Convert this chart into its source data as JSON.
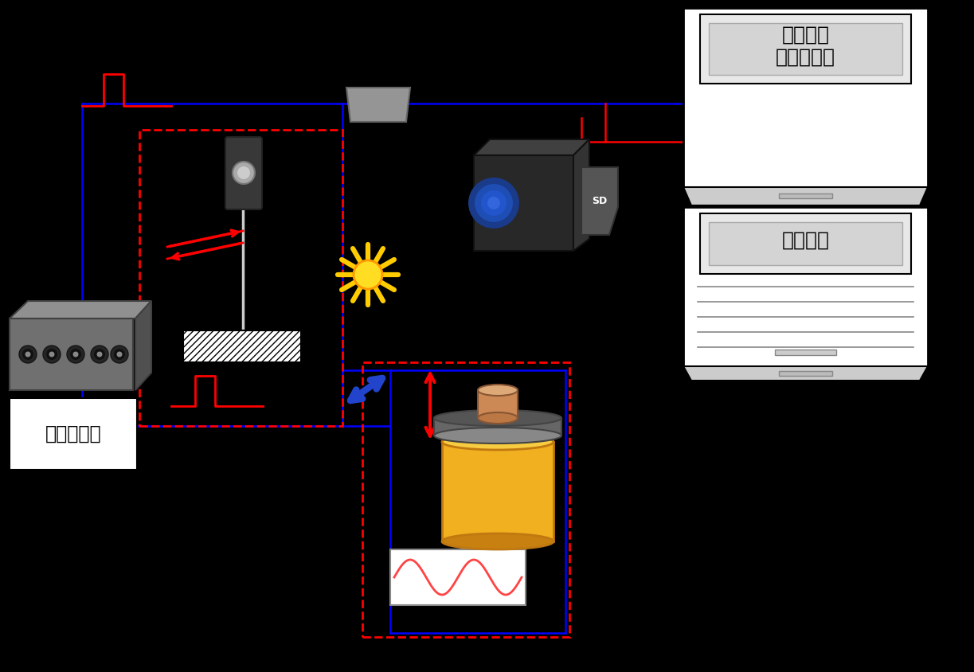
{
  "bg_color": "#000000",
  "label_signal_generator": "信号発生器",
  "label_signal_processing": "信号処理\nプログラム",
  "label_image_processing": "画像処理",
  "label_sd": "SD",
  "blue": "#0000ff",
  "red": "#ff0000",
  "lw": 1.8,
  "lw_dash": 2.0
}
